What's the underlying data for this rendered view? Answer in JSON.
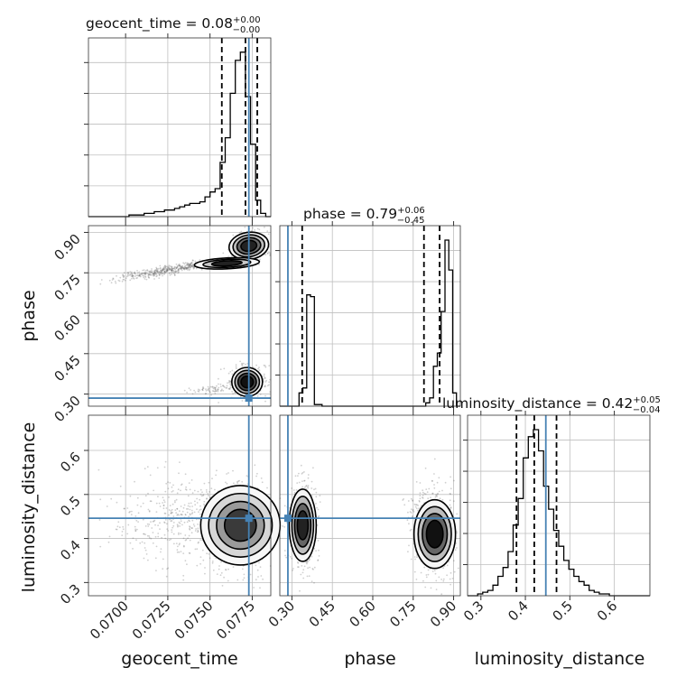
{
  "chart_data": {
    "type": "corner",
    "parameters": [
      "geocent_time",
      "phase",
      "luminosity_distance"
    ],
    "truths": [
      0.0773,
      0.285,
      0.446
    ],
    "truth_color": "#4682b4",
    "ranges": [
      [
        0.0678,
        0.0786
      ],
      [
        0.255,
        0.925
      ],
      [
        0.27,
        0.68
      ]
    ],
    "ticks": [
      [
        "0.0700",
        "0.0725",
        "0.0750",
        "0.0775"
      ],
      [
        "0.30",
        "0.45",
        "0.60",
        "0.75",
        "0.90"
      ],
      [
        "0.3",
        "0.4",
        "0.5",
        "0.6"
      ]
    ],
    "titles": [
      {
        "label": "geocent_time = 0.08",
        "plus": "+0.00",
        "minus": "−0.00"
      },
      {
        "label": "phase = 0.79",
        "plus": "+0.06",
        "minus": "−0.45"
      },
      {
        "label": "luminosity_distance = 0.42",
        "plus": "+0.05",
        "minus": "−0.04"
      }
    ],
    "quantiles": [
      [
        0.0757,
        0.0771,
        0.0778
      ],
      [
        0.338,
        0.79,
        0.848
      ],
      [
        0.38,
        0.42,
        0.47
      ]
    ],
    "histograms": [
      {
        "edges": [
          0.0678,
          0.0786
        ],
        "counts": [
          0,
          0,
          0,
          0,
          0,
          0,
          0,
          0,
          1,
          1,
          1,
          2,
          2,
          3,
          3,
          4,
          4,
          5,
          6,
          7,
          8,
          8,
          9,
          12,
          15,
          17,
          33,
          48,
          75,
          95,
          100,
          73,
          44,
          10,
          2,
          0
        ]
      },
      {
        "edges": [
          0.255,
          0.925
        ],
        "counts": [
          0,
          0,
          0,
          0,
          0,
          8,
          11,
          67,
          66,
          1,
          1,
          0,
          0,
          0,
          0,
          0,
          0,
          0,
          0,
          0,
          0,
          0,
          0,
          0,
          0,
          0,
          0,
          0,
          0,
          0,
          0,
          0,
          0,
          0,
          0,
          0,
          0,
          0,
          2,
          5,
          24,
          32,
          57,
          100,
          82,
          8,
          0
        ]
      },
      {
        "edges": [
          0.27,
          0.68
        ],
        "counts": [
          0,
          0,
          1,
          2,
          3,
          6,
          11,
          16,
          25,
          40,
          55,
          78,
          90,
          94,
          82,
          62,
          49,
          37,
          28,
          20,
          15,
          11,
          8,
          6,
          3,
          2,
          1,
          1,
          0,
          0,
          0,
          0,
          0,
          0,
          0,
          0
        ]
      }
    ],
    "modes_2d": {
      "phase_vs_geocent_time": [
        {
          "x": 0.0778,
          "y": 0.85,
          "weight": 1.0
        },
        {
          "x": 0.0773,
          "y": 0.82,
          "weight": 0.7
        },
        {
          "x": 0.076,
          "y": 0.785,
          "weight": 0.4
        },
        {
          "x": 0.073,
          "y": 0.765,
          "weight": 0.2
        },
        {
          "x": 0.0705,
          "y": 0.73,
          "weight": 0.1
        },
        {
          "x": 0.0772,
          "y": 0.35,
          "weight": 0.8
        }
      ],
      "luminosity_distance_vs_geocent_time": [
        {
          "x": 0.0772,
          "y": 0.43,
          "weight": 1.0
        }
      ],
      "luminosity_distance_vs_phase": [
        {
          "x": 0.34,
          "y": 0.43,
          "weight": 0.8
        },
        {
          "x": 0.83,
          "y": 0.41,
          "weight": 1.0
        }
      ]
    },
    "grid": true
  }
}
